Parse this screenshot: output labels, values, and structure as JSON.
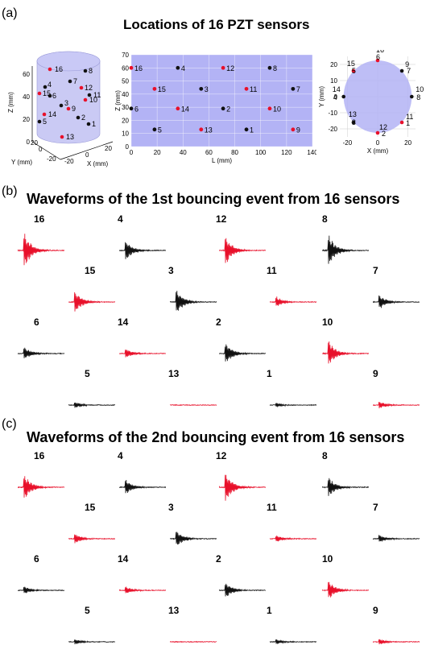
{
  "panels": {
    "a": {
      "label": "(a)",
      "title": "Locations of 16 PZT sensors"
    },
    "b": {
      "label": "(b)",
      "title": "Waveforms of the 1st bouncing event from 16 sensors"
    },
    "c": {
      "label": "(c)",
      "title": "Waveforms of the 2nd bouncing event from 16 sensors"
    }
  },
  "colors": {
    "red": "#e8102a",
    "black": "#111111",
    "cylinder": "#b8b8f0",
    "plane": "#b3b3f5"
  },
  "chart_data": [
    {
      "type": "scatter",
      "name": "3d-cylinder",
      "xlabel": "X (mm)",
      "ylabel": "Y (mm)",
      "zlabel": "Z (mm)",
      "z_ticks": [
        "0",
        "20",
        "40",
        "60"
      ],
      "x_ticks": [
        "-20",
        "0",
        "20"
      ],
      "y_ticks": [
        "-20",
        "0",
        "20"
      ],
      "points": [
        {
          "label": "16",
          "color": "red"
        },
        {
          "label": "8",
          "color": "black"
        },
        {
          "label": "7",
          "color": "black"
        },
        {
          "label": "4",
          "color": "black"
        },
        {
          "label": "12",
          "color": "red"
        },
        {
          "label": "15",
          "color": "red"
        },
        {
          "label": "6",
          "color": "black"
        },
        {
          "label": "11",
          "color": "black"
        },
        {
          "label": "10",
          "color": "red"
        },
        {
          "label": "3",
          "color": "black"
        },
        {
          "label": "9",
          "color": "red"
        },
        {
          "label": "14",
          "color": "red"
        },
        {
          "label": "2",
          "color": "black"
        },
        {
          "label": "5",
          "color": "black"
        },
        {
          "label": "1",
          "color": "black"
        },
        {
          "label": "13",
          "color": "red"
        }
      ]
    },
    {
      "type": "scatter",
      "name": "unrolled-surface",
      "xlabel": "L (mm)",
      "ylabel": "Z (mm)",
      "xlim": [
        0,
        140
      ],
      "ylim": [
        0,
        70
      ],
      "x_ticks": [
        0,
        20,
        40,
        60,
        80,
        100,
        120,
        140
      ],
      "y_ticks": [
        0,
        10,
        20,
        30,
        40,
        50,
        60,
        70
      ],
      "points": [
        {
          "label": "16",
          "x": 0,
          "y": 60,
          "color": "red"
        },
        {
          "label": "4",
          "x": 36,
          "y": 60,
          "color": "black"
        },
        {
          "label": "12",
          "x": 71,
          "y": 60,
          "color": "red"
        },
        {
          "label": "8",
          "x": 107,
          "y": 60,
          "color": "black"
        },
        {
          "label": "15",
          "x": 18,
          "y": 44,
          "color": "red"
        },
        {
          "label": "3",
          "x": 54,
          "y": 44,
          "color": "black"
        },
        {
          "label": "11",
          "x": 89,
          "y": 44,
          "color": "red"
        },
        {
          "label": "7",
          "x": 125,
          "y": 44,
          "color": "black"
        },
        {
          "label": "6",
          "x": 0,
          "y": 29,
          "color": "black"
        },
        {
          "label": "14",
          "x": 36,
          "y": 29,
          "color": "red"
        },
        {
          "label": "2",
          "x": 71,
          "y": 29,
          "color": "black"
        },
        {
          "label": "10",
          "x": 107,
          "y": 29,
          "color": "red"
        },
        {
          "label": "5",
          "x": 18,
          "y": 13,
          "color": "black"
        },
        {
          "label": "13",
          "x": 54,
          "y": 13,
          "color": "red"
        },
        {
          "label": "1",
          "x": 89,
          "y": 13,
          "color": "black"
        },
        {
          "label": "9",
          "x": 125,
          "y": 13,
          "color": "red"
        }
      ]
    },
    {
      "type": "scatter",
      "name": "top-view",
      "xlabel": "X (mm)",
      "ylabel": "Y (mm)",
      "xlim": [
        -25,
        25
      ],
      "ylim": [
        -25,
        25
      ],
      "x_ticks": [
        -20,
        0,
        20
      ],
      "y_ticks": [
        -20,
        -10,
        0,
        10,
        20
      ],
      "points": [
        {
          "label": "16",
          "label2": "6",
          "x": 0,
          "y": 22.5,
          "color": "red"
        },
        {
          "label": "15",
          "label2": "5",
          "x": -16,
          "y": 16,
          "color": "red"
        },
        {
          "label": "9",
          "label2": "7",
          "x": 16,
          "y": 16,
          "color": "black"
        },
        {
          "label": "14",
          "label2": "4",
          "x": -22.5,
          "y": 0,
          "color": "black"
        },
        {
          "label": "10",
          "label2": "8",
          "x": 22.5,
          "y": 0,
          "color": "black"
        },
        {
          "label": "13",
          "label2": "3",
          "x": -16,
          "y": -16,
          "color": "black"
        },
        {
          "label": "11",
          "label2": "1",
          "x": 16,
          "y": -16,
          "color": "red"
        },
        {
          "label": "12",
          "label2": "2",
          "x": 0,
          "y": -22.5,
          "color": "red"
        }
      ]
    },
    {
      "type": "line",
      "name": "waveforms-event-1",
      "sensors": [
        {
          "label": "16",
          "color": "red",
          "amp": 1.0
        },
        {
          "label": "4",
          "color": "black",
          "amp": 0.55
        },
        {
          "label": "12",
          "color": "red",
          "amp": 0.8
        },
        {
          "label": "8",
          "color": "black",
          "amp": 0.85
        },
        {
          "label": "15",
          "color": "red",
          "amp": 0.6
        },
        {
          "label": "3",
          "color": "black",
          "amp": 0.7
        },
        {
          "label": "11",
          "color": "red",
          "amp": 0.3
        },
        {
          "label": "7",
          "color": "black",
          "amp": 0.4
        },
        {
          "label": "6",
          "color": "black",
          "amp": 0.35
        },
        {
          "label": "14",
          "color": "red",
          "amp": 0.28
        },
        {
          "label": "2",
          "color": "black",
          "amp": 0.6
        },
        {
          "label": "10",
          "color": "red",
          "amp": 0.7
        },
        {
          "label": "5",
          "color": "black",
          "amp": 0.18
        },
        {
          "label": "13",
          "color": "red",
          "amp": 0.02
        },
        {
          "label": "1",
          "color": "black",
          "amp": 0.12
        },
        {
          "label": "9",
          "color": "red",
          "amp": 0.2
        }
      ]
    },
    {
      "type": "line",
      "name": "waveforms-event-2",
      "sensors": [
        {
          "label": "16",
          "color": "red",
          "amp": 0.7
        },
        {
          "label": "4",
          "color": "black",
          "amp": 0.4
        },
        {
          "label": "12",
          "color": "red",
          "amp": 0.85
        },
        {
          "label": "8",
          "color": "black",
          "amp": 0.55
        },
        {
          "label": "15",
          "color": "red",
          "amp": 0.28
        },
        {
          "label": "3",
          "color": "black",
          "amp": 0.45
        },
        {
          "label": "11",
          "color": "red",
          "amp": 0.18
        },
        {
          "label": "7",
          "color": "black",
          "amp": 0.22
        },
        {
          "label": "6",
          "color": "black",
          "amp": 0.22
        },
        {
          "label": "14",
          "color": "red",
          "amp": 0.2
        },
        {
          "label": "2",
          "color": "black",
          "amp": 0.45
        },
        {
          "label": "10",
          "color": "red",
          "amp": 0.5
        },
        {
          "label": "5",
          "color": "black",
          "amp": 0.15
        },
        {
          "label": "13",
          "color": "red",
          "amp": 0.02
        },
        {
          "label": "1",
          "color": "black",
          "amp": 0.14
        },
        {
          "label": "9",
          "color": "red",
          "amp": 0.18
        }
      ]
    }
  ]
}
